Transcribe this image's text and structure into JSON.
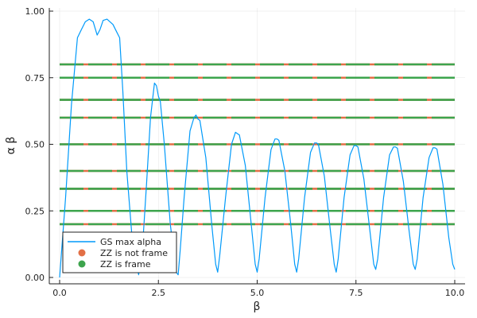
{
  "chart_data": {
    "type": "line",
    "title": "",
    "xlabel": "β",
    "ylabel": "α β",
    "xlim": [
      0,
      10
    ],
    "ylim": [
      0,
      1
    ],
    "xticks": [
      0,
      2.5,
      5,
      7.5,
      10
    ],
    "xtick_labels": [
      "0.0",
      "2.5",
      "5.0",
      "7.5",
      "10.0"
    ],
    "yticks": [
      0,
      0.25,
      0.5,
      0.75,
      1
    ],
    "ytick_labels": [
      "0.00",
      "0.25",
      "0.50",
      "0.75",
      "1.00"
    ],
    "grid": true,
    "legend_position": "bottom-left",
    "legend": [
      "GS max alpha",
      "ZZ is not frame",
      "ZZ is frame"
    ],
    "colors": {
      "gs": "#009AFA",
      "not_frame": "#E26F46",
      "frame": "#3DA44D"
    },
    "series": [
      {
        "name": "GS max alpha",
        "kind": "line",
        "x": [
          0.0,
          0.15,
          0.3,
          0.45,
          0.55,
          0.65,
          0.75,
          0.85,
          0.95,
          1.02,
          1.1,
          1.2,
          1.35,
          1.45,
          1.52,
          1.6,
          1.7,
          1.85,
          2.0,
          2.1,
          2.2,
          2.3,
          2.4,
          2.45,
          2.5,
          2.55,
          2.65,
          2.8,
          2.95,
          3.0,
          3.05,
          3.15,
          3.3,
          3.4,
          3.45,
          3.5,
          3.55,
          3.7,
          3.85,
          3.95,
          4.0,
          4.05,
          4.2,
          4.35,
          4.45,
          4.5,
          4.55,
          4.7,
          4.85,
          4.95,
          5.0,
          5.05,
          5.2,
          5.35,
          5.45,
          5.5,
          5.55,
          5.7,
          5.85,
          5.95,
          6.0,
          6.05,
          6.2,
          6.35,
          6.45,
          6.5,
          6.55,
          6.7,
          6.85,
          6.95,
          7.0,
          7.05,
          7.2,
          7.35,
          7.45,
          7.5,
          7.55,
          7.7,
          7.85,
          7.95,
          8.0,
          8.05,
          8.2,
          8.35,
          8.45,
          8.5,
          8.55,
          8.7,
          8.85,
          8.95,
          9.0,
          9.05,
          9.2,
          9.35,
          9.45,
          9.5,
          9.55,
          9.7,
          9.85,
          9.95,
          10.0
        ],
        "y": [
          0.0,
          0.3,
          0.65,
          0.9,
          0.93,
          0.96,
          0.97,
          0.96,
          0.91,
          0.93,
          0.965,
          0.97,
          0.95,
          0.92,
          0.9,
          0.7,
          0.4,
          0.12,
          0.01,
          0.12,
          0.35,
          0.6,
          0.73,
          0.72,
          0.68,
          0.66,
          0.5,
          0.2,
          0.02,
          0.01,
          0.1,
          0.3,
          0.55,
          0.6,
          0.61,
          0.595,
          0.59,
          0.45,
          0.2,
          0.05,
          0.02,
          0.08,
          0.3,
          0.5,
          0.545,
          0.54,
          0.535,
          0.42,
          0.2,
          0.05,
          0.02,
          0.07,
          0.3,
          0.48,
          0.52,
          0.52,
          0.515,
          0.4,
          0.2,
          0.05,
          0.02,
          0.07,
          0.3,
          0.47,
          0.505,
          0.505,
          0.5,
          0.38,
          0.18,
          0.05,
          0.02,
          0.07,
          0.3,
          0.46,
          0.495,
          0.495,
          0.49,
          0.37,
          0.18,
          0.05,
          0.03,
          0.07,
          0.3,
          0.46,
          0.49,
          0.49,
          0.485,
          0.36,
          0.17,
          0.05,
          0.03,
          0.07,
          0.3,
          0.45,
          0.487,
          0.487,
          0.482,
          0.35,
          0.15,
          0.05,
          0.03
        ]
      },
      {
        "name": "ZZ is not frame",
        "kind": "scatter",
        "levels": [
          0.2,
          0.25,
          0.333,
          0.4,
          0.5,
          0.6,
          0.667,
          0.75,
          0.8
        ],
        "x_range": [
          0,
          10
        ]
      },
      {
        "name": "ZZ is frame",
        "kind": "scatter",
        "levels": [
          0.2,
          0.25,
          0.333,
          0.4,
          0.5,
          0.6,
          0.667,
          0.75,
          0.8
        ],
        "x_range": [
          0,
          10
        ]
      }
    ]
  }
}
